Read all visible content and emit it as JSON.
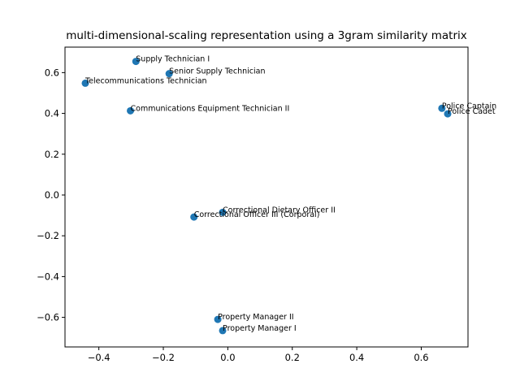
{
  "chart_data": {
    "type": "scatter",
    "title": "multi-dimensional-scaling representation using a 3gram similarity matrix",
    "xlabel": "",
    "ylabel": "",
    "xlim": [
      -0.505,
      0.745
    ],
    "ylim": [
      -0.745,
      0.725
    ],
    "xticks": [
      -0.4,
      -0.2,
      0.0,
      0.2,
      0.4,
      0.6
    ],
    "xtick_labels": [
      "−0.4",
      "−0.2",
      "0.0",
      "0.2",
      "0.4",
      "0.6"
    ],
    "yticks": [
      -0.6,
      -0.4,
      -0.2,
      0.0,
      0.2,
      0.4,
      0.6
    ],
    "ytick_labels": [
      "−0.6",
      "−0.4",
      "−0.2",
      "0.0",
      "0.2",
      "0.4",
      "0.6"
    ],
    "grid": false,
    "marker_color": "#1f77b4",
    "points": [
      {
        "label": "Supply Technician I",
        "x": -0.285,
        "y": 0.655
      },
      {
        "label": "Senior Supply Technician",
        "x": -0.182,
        "y": 0.595
      },
      {
        "label": "Telecommunications Technician",
        "x": -0.442,
        "y": 0.548
      },
      {
        "label": "Communications Equipment Technician II",
        "x": -0.302,
        "y": 0.413
      },
      {
        "label": "Police Captain",
        "x": 0.664,
        "y": 0.425
      },
      {
        "label": "Police Cadet",
        "x": 0.682,
        "y": 0.398
      },
      {
        "label": "Correctional Dietary Officer II",
        "x": -0.016,
        "y": -0.085
      },
      {
        "label": "Correctional Officer III (Corporal)",
        "x": -0.105,
        "y": -0.108
      },
      {
        "label": "Property Manager II",
        "x": -0.031,
        "y": -0.61
      },
      {
        "label": "Property Manager I",
        "x": -0.016,
        "y": -0.665
      }
    ]
  }
}
